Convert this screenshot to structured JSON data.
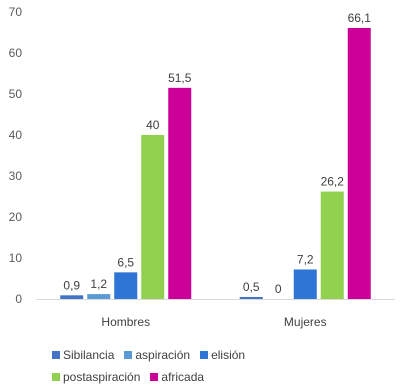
{
  "chart_data": {
    "type": "bar",
    "categories": [
      "Hombres",
      "Mujeres"
    ],
    "series": [
      {
        "name": "Sibilancia",
        "values": [
          0.9,
          0.5
        ],
        "labels": [
          "0,9",
          "0,5"
        ],
        "color": "#4472C4"
      },
      {
        "name": "aspiración",
        "values": [
          1.2,
          0
        ],
        "labels": [
          "1,2",
          "0"
        ],
        "color": "#5B9BD5"
      },
      {
        "name": "elisión",
        "values": [
          6.5,
          7.2
        ],
        "labels": [
          "6,5",
          "7,2"
        ],
        "color": "#2E75D6"
      },
      {
        "name": "postaspiración",
        "values": [
          40,
          26.2
        ],
        "labels": [
          "40",
          "26,2"
        ],
        "color": "#92D050"
      },
      {
        "name": "africada",
        "values": [
          51.5,
          66.1
        ],
        "labels": [
          "51,5",
          "66,1"
        ],
        "color": "#CC0099"
      }
    ],
    "yticks": [
      "0",
      "10",
      "20",
      "30",
      "40",
      "50",
      "60",
      "70"
    ],
    "ylim": [
      0,
      70
    ],
    "grid": false,
    "legend_position": "bottom"
  }
}
